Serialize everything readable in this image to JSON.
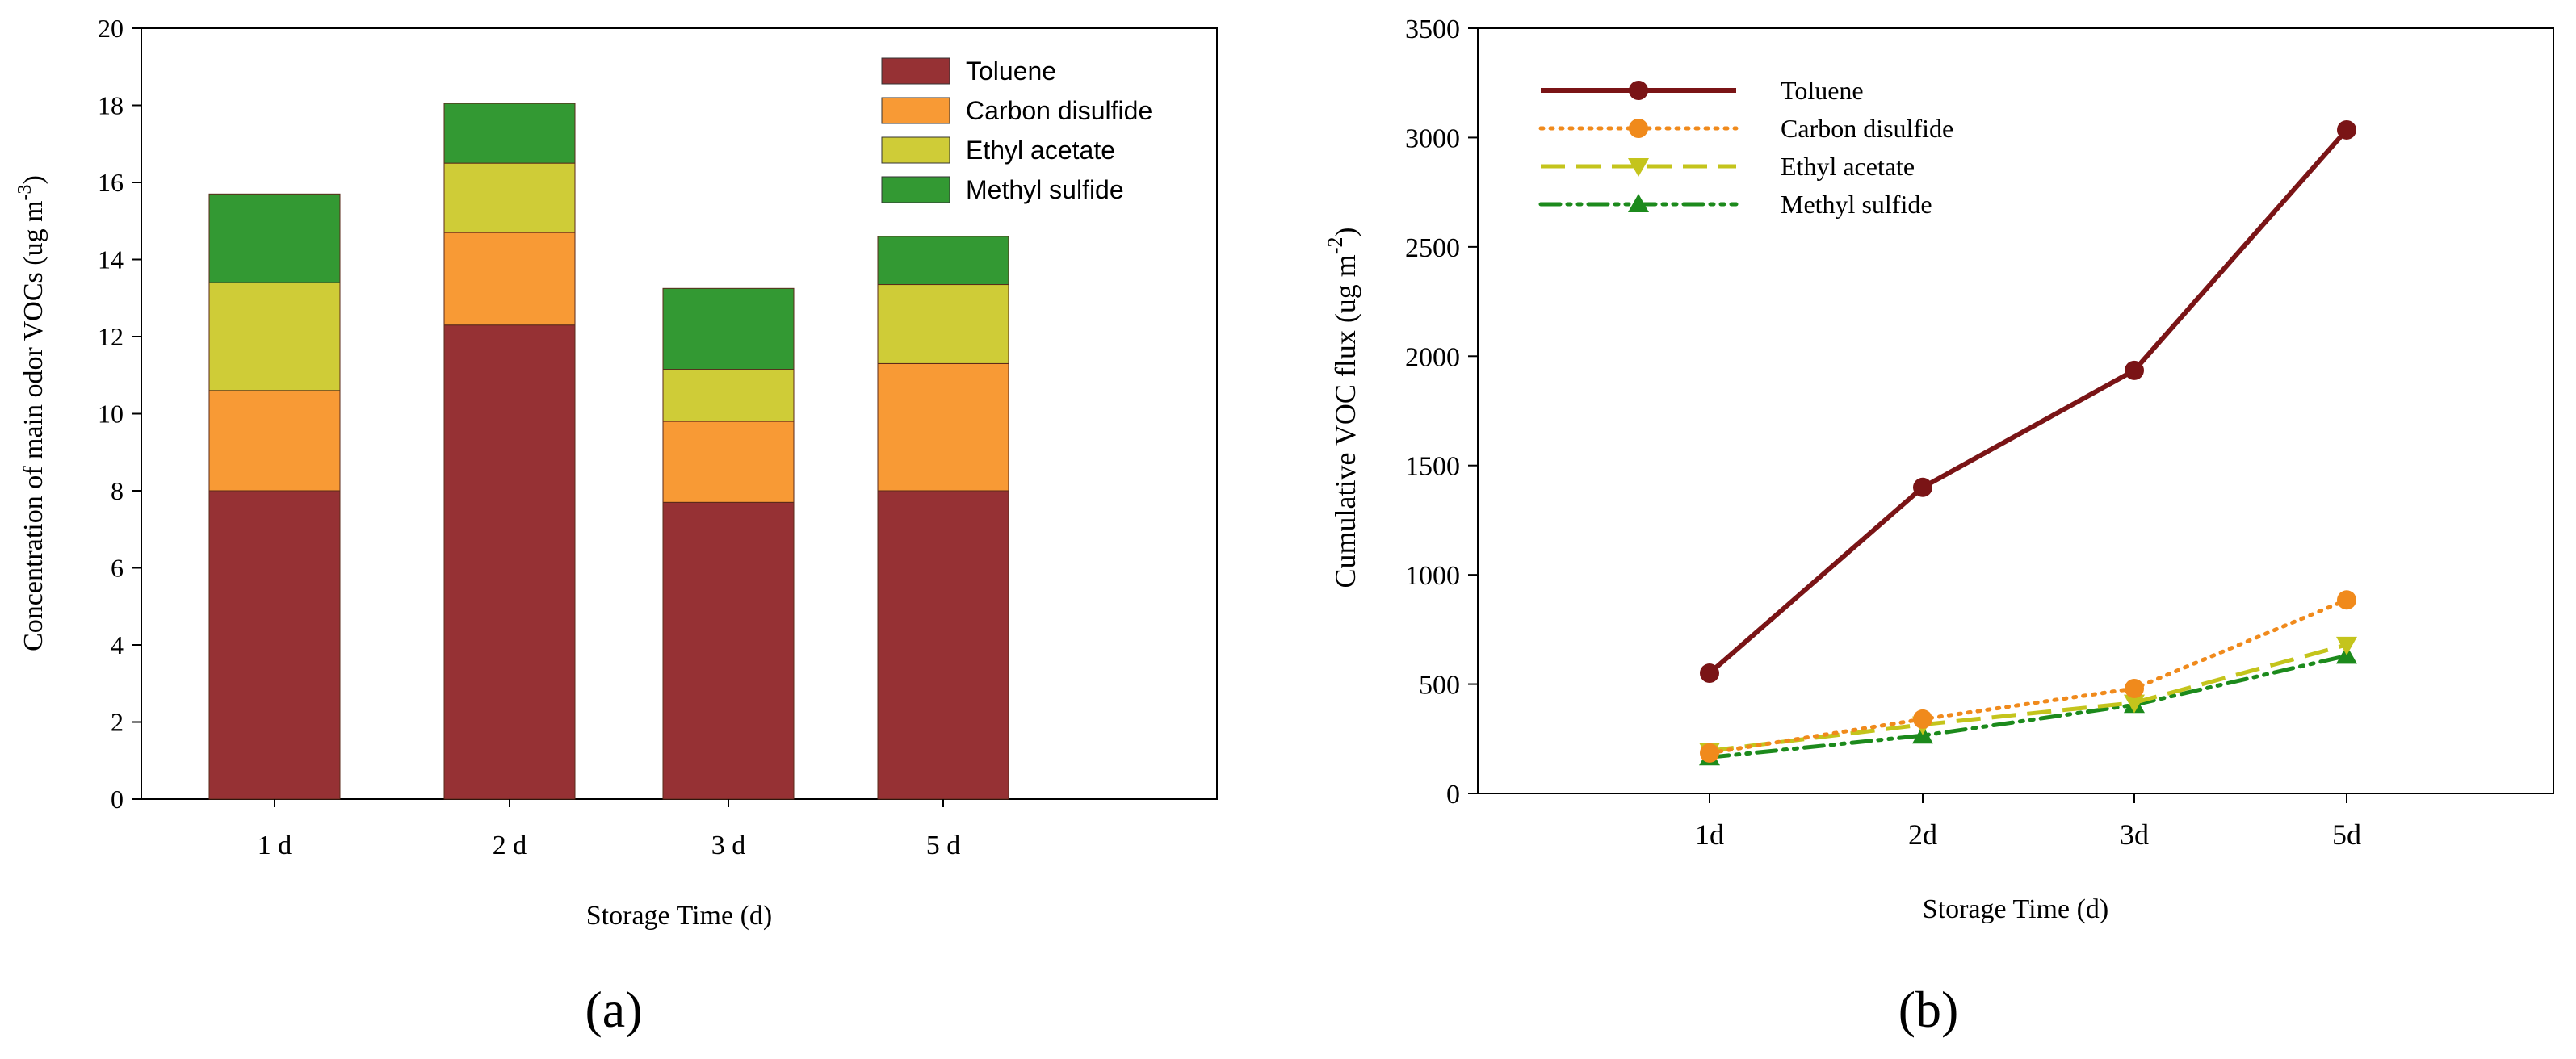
{
  "chart_data": [
    {
      "type": "bar",
      "stacked": true,
      "panel_label": "(a)",
      "categories": [
        "1 d",
        "2 d",
        "3 d",
        "5 d"
      ],
      "series": [
        {
          "name": "Toluene",
          "color": "#963134",
          "values": [
            8.0,
            12.3,
            7.7,
            8.0
          ]
        },
        {
          "name": "Carbon disulfide",
          "color": "#f89a35",
          "values": [
            2.6,
            2.4,
            2.1,
            3.3
          ]
        },
        {
          "name": "Ethyl acetate",
          "color": "#cfcc37",
          "values": [
            2.8,
            1.8,
            1.35,
            2.05
          ]
        },
        {
          "name": "Methyl sulfide",
          "color": "#339933",
          "values": [
            2.3,
            1.55,
            2.1,
            1.25
          ]
        }
      ],
      "xlabel": "Storage Time (d)",
      "ylabel_main": "Concentration of main odor VOCs (ug m",
      "ylabel_sup": "-3",
      "ylabel_close": ")",
      "ylim": [
        0,
        20
      ],
      "yticks": [
        0,
        2,
        4,
        6,
        8,
        10,
        12,
        14,
        16,
        18,
        20
      ],
      "legend_position": "top-right"
    },
    {
      "type": "line",
      "panel_label": "(b)",
      "categories": [
        "1d",
        "2d",
        "3d",
        "5d"
      ],
      "series": [
        {
          "name": "Toluene",
          "color": "#7a1416",
          "style": "solid",
          "marker": "circle",
          "values": [
            550,
            1400,
            1935,
            3035
          ]
        },
        {
          "name": "Carbon disulfide",
          "color": "#f08a1c",
          "style": "dotted",
          "marker": "circle",
          "values": [
            185,
            340,
            480,
            885
          ]
        },
        {
          "name": "Ethyl acetate",
          "color": "#c4c41c",
          "style": "dashed",
          "marker": "triangle-down",
          "values": [
            195,
            315,
            415,
            680
          ]
        },
        {
          "name": "Methyl sulfide",
          "color": "#1c8a1c",
          "style": "dash-dot-dot",
          "marker": "triangle-up",
          "values": [
            165,
            265,
            405,
            630
          ]
        }
      ],
      "xlabel": "Storage Time (d)",
      "ylabel_main": "Cumulative VOC flux (ug m",
      "ylabel_sup": "-2",
      "ylabel_close": ")",
      "ylim": [
        0,
        3500
      ],
      "yticks": [
        0,
        500,
        1000,
        1500,
        2000,
        2500,
        3000,
        3500
      ],
      "legend_position": "top-left"
    }
  ]
}
